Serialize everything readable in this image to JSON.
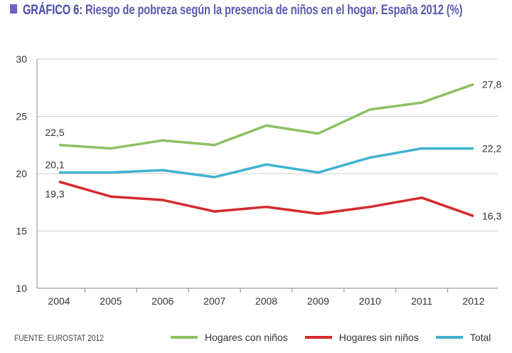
{
  "title": {
    "lead": "GRÁFICO 6:",
    "text": "Riesgo de pobreza según la presencia de niños en el hogar. España 2012 (%)"
  },
  "source": "FUENTE: EUROSTAT 2012",
  "chart_data": {
    "type": "line",
    "title": "GRÁFICO 6: Riesgo de pobreza según la presencia de niños en el hogar. España 2012 (%)",
    "categories": [
      "2004",
      "2005",
      "2006",
      "2007",
      "2008",
      "2009",
      "2010",
      "2011",
      "2012"
    ],
    "yticks": [
      "10",
      "15",
      "20",
      "25",
      "30"
    ],
    "ylim": [
      10,
      30
    ],
    "grid": "horizontal",
    "legend_position": "bottom-right",
    "series": [
      {
        "name": "Hogares con niños",
        "color": "#8cc063",
        "values": [
          22.5,
          22.2,
          22.9,
          22.5,
          24.2,
          23.5,
          25.6,
          26.2,
          27.8
        ],
        "labels": {
          "first": "22,5",
          "last": "27,8"
        }
      },
      {
        "name": "Hogares sin niños",
        "color": "#d42a2e",
        "values": [
          19.3,
          18.0,
          17.7,
          16.7,
          17.1,
          16.5,
          17.1,
          17.9,
          16.3
        ],
        "labels": {
          "first": "19,3",
          "last": "16,3"
        }
      },
      {
        "name": "Total",
        "color": "#3eb3cf",
        "values": [
          20.1,
          20.1,
          20.3,
          19.7,
          20.8,
          20.1,
          21.4,
          22.2,
          22.2
        ],
        "labels": {
          "first": "20,1",
          "last": "22,2"
        }
      }
    ]
  }
}
